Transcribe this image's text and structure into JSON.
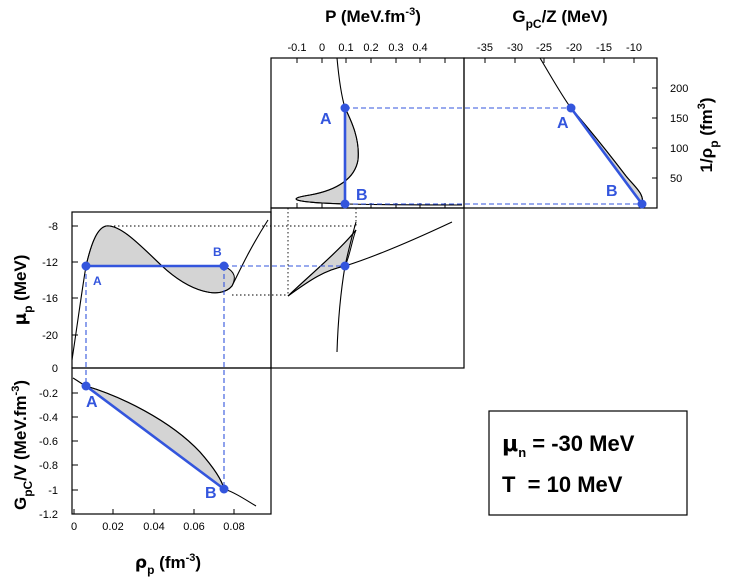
{
  "labels": {
    "pressure_main": "P (MeV.fm",
    "pressure_exp": "-3",
    "pressure_close": ")",
    "gz_g": "G",
    "gz_sub": "pC",
    "gz_rest": "/Z (MeV)",
    "invrho_main": "1/ρ",
    "invrho_sub": "p",
    "invrho_unit": " (fm",
    "invrho_exp": "3",
    "invrho_close": ")",
    "mu_main": "μ",
    "mu_sub": "p",
    "mu_unit": " (MeV)",
    "rho_main": "ρ",
    "rho_sub": "p",
    "rho_unit": " (fm",
    "rho_exp": "-3",
    "rho_close": ")",
    "gv_g": "G",
    "gv_sub": "pC",
    "gv_rest": "/V (MeV.fm",
    "gv_exp": "-3",
    "gv_close": ")"
  },
  "panels": {
    "pressure": {
      "xticks": [
        "-0.1",
        "0",
        "0.1",
        "0.2",
        "0.3",
        "0.4",
        ""
      ]
    },
    "gz": {
      "xticks": [
        "-35",
        "-30",
        "-25",
        "-20",
        "-15",
        "-10",
        ""
      ],
      "yticks": [
        "200",
        "150",
        "100",
        "50"
      ]
    },
    "mu": {
      "yticks": [
        "-8",
        "-12",
        "-16",
        "-20"
      ]
    },
    "gv": {
      "yticks": [
        "0",
        "-0.2",
        "-0.4",
        "-0.6",
        "-0.8",
        "-1",
        "-1.2"
      ],
      "xticks": [
        "0",
        "0.02",
        "0.04",
        "0.06",
        "0.08"
      ]
    }
  },
  "points": {
    "a": "A",
    "b": "B"
  },
  "legend": {
    "mu_symbol": "μ",
    "mu_sub": "n",
    "mu_value": " = -30 MeV",
    "t_line": "T  = 10 MeV"
  },
  "chart_data": [
    {
      "type": "line",
      "title": "",
      "xlabel": "P (MeV.fm-3)",
      "ylabel": "1/ρp (fm3)",
      "xlim": [
        -0.15,
        0.45
      ],
      "ylim": [
        0,
        250
      ],
      "coexistence_points": {
        "A": {
          "x": 0.07,
          "y": 160
        },
        "B": {
          "x": 0.07,
          "y": 8
        }
      }
    },
    {
      "type": "line",
      "title": "",
      "xlabel": "GpC/Z (MeV)",
      "ylabel": "1/ρp (fm3)",
      "xlim": [
        -37,
        -9
      ],
      "ylim": [
        0,
        250
      ],
      "coexistence_points": {
        "A": {
          "x": -22.5,
          "y": 160
        },
        "B": {
          "x": -13,
          "y": 8
        }
      }
    },
    {
      "type": "line",
      "title": "",
      "xlabel": "ρp (fm-3)",
      "ylabel": "μp (MeV)",
      "xlim": [
        0,
        0.095
      ],
      "ylim": [
        -23,
        -7
      ],
      "series": [
        {
          "x": [
            0.0,
            0.006,
            0.015,
            0.03,
            0.052,
            0.075,
            0.09
          ],
          "y": [
            -22.5,
            -12.3,
            -8.0,
            -10.0,
            -15.5,
            -14.5,
            -8.0
          ]
        }
      ],
      "coexistence_points": {
        "A": {
          "x": 0.006,
          "y": -12.3
        },
        "B": {
          "x": 0.073,
          "y": -12.3
        }
      }
    },
    {
      "type": "line",
      "title": "",
      "xlabel": "ρp (fm-3)",
      "ylabel": "GpC/V (MeV.fm-3)",
      "xlim": [
        0,
        0.095
      ],
      "ylim": [
        -1.2,
        0
      ],
      "series": [
        {
          "x": [
            0.0,
            0.006,
            0.03,
            0.06,
            0.073,
            0.087
          ],
          "y": [
            -0.1,
            -0.15,
            -0.35,
            -0.75,
            -0.95,
            -1.12
          ]
        }
      ],
      "coexistence_points": {
        "A": {
          "x": 0.006,
          "y": -0.15
        },
        "B": {
          "x": 0.073,
          "y": -0.95
        }
      }
    }
  ]
}
